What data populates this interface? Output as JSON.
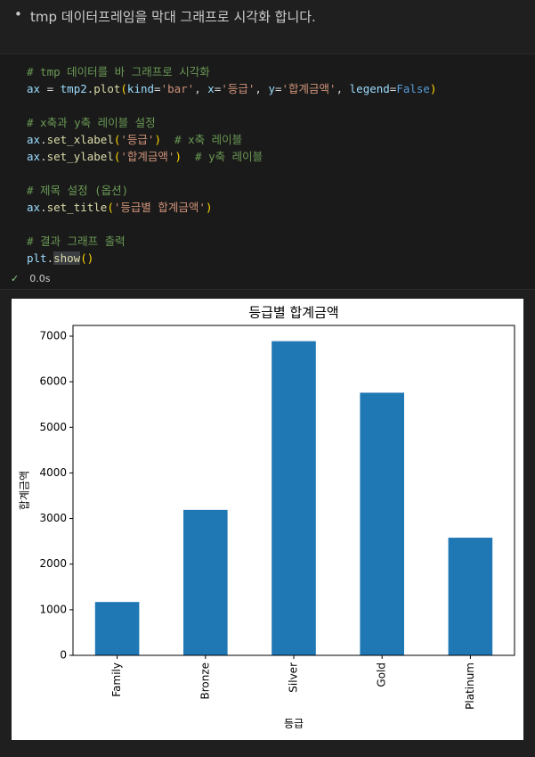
{
  "markdown": {
    "bullet": "tmp 데이터프레임을 막대 그래프로 시각화 합니다."
  },
  "code": {
    "lines": [
      [
        [
          "# tmp 데이터를 바 그래프로 시각화",
          "#6a9955"
        ]
      ],
      [
        [
          "ax",
          "#9cdcfe"
        ],
        [
          " = ",
          "#d4d4d4"
        ],
        [
          "tmp2",
          "#9cdcfe"
        ],
        [
          ".",
          "#d4d4d4"
        ],
        [
          "plot",
          "#dcdcaa"
        ],
        [
          "(",
          "#ffd700"
        ],
        [
          "kind",
          "#9cdcfe"
        ],
        [
          "=",
          "#d4d4d4"
        ],
        [
          "'bar'",
          "#ce9178"
        ],
        [
          ", ",
          "#d4d4d4"
        ],
        [
          "x",
          "#9cdcfe"
        ],
        [
          "=",
          "#d4d4d4"
        ],
        [
          "'등급'",
          "#ce9178"
        ],
        [
          ", ",
          "#d4d4d4"
        ],
        [
          "y",
          "#9cdcfe"
        ],
        [
          "=",
          "#d4d4d4"
        ],
        [
          "'합계금액'",
          "#ce9178"
        ],
        [
          ", ",
          "#d4d4d4"
        ],
        [
          "legend",
          "#9cdcfe"
        ],
        [
          "=",
          "#d4d4d4"
        ],
        [
          "False",
          "#569cd6"
        ],
        [
          ")",
          "#ffd700"
        ]
      ],
      [],
      [
        [
          "# x축과 y축 레이블 설정",
          "#6a9955"
        ]
      ],
      [
        [
          "ax",
          "#9cdcfe"
        ],
        [
          ".",
          "#d4d4d4"
        ],
        [
          "set_xlabel",
          "#dcdcaa"
        ],
        [
          "(",
          "#ffd700"
        ],
        [
          "'등급'",
          "#ce9178"
        ],
        [
          ")",
          "#ffd700"
        ],
        [
          "  # x축 레이블",
          "#6a9955"
        ]
      ],
      [
        [
          "ax",
          "#9cdcfe"
        ],
        [
          ".",
          "#d4d4d4"
        ],
        [
          "set_ylabel",
          "#dcdcaa"
        ],
        [
          "(",
          "#ffd700"
        ],
        [
          "'합계금액'",
          "#ce9178"
        ],
        [
          ")",
          "#ffd700"
        ],
        [
          "  # y축 레이블",
          "#6a9955"
        ]
      ],
      [],
      [
        [
          "# 제목 설정 (옵션)",
          "#6a9955"
        ]
      ],
      [
        [
          "ax",
          "#9cdcfe"
        ],
        [
          ".",
          "#d4d4d4"
        ],
        [
          "set_title",
          "#dcdcaa"
        ],
        [
          "(",
          "#ffd700"
        ],
        [
          "'등급별 합계금액'",
          "#ce9178"
        ],
        [
          ")",
          "#ffd700"
        ]
      ],
      [],
      [
        [
          "# 결과 그래프 출력",
          "#6a9955"
        ]
      ],
      [
        [
          "plt",
          "#9cdcfe"
        ],
        [
          ".",
          "#d4d4d4"
        ],
        [
          "show",
          "#dcdcaa"
        ],
        [
          "()",
          "#ffd700"
        ]
      ]
    ],
    "status": "0.0s"
  },
  "chart_data": {
    "type": "bar",
    "title": "등급별 합계금액",
    "x_label": "등급",
    "y_label": "합계금액",
    "categories": [
      "Family",
      "Bronze",
      "Silver",
      "Gold",
      "Platinum"
    ],
    "values": [
      1170,
      3190,
      6890,
      5760,
      2580
    ],
    "color": "#1f77b4",
    "ylim": [
      0,
      7235
    ],
    "yticks": [
      0,
      1000,
      2000,
      3000,
      4000,
      5000,
      6000,
      7000
    ],
    "grid": false
  }
}
